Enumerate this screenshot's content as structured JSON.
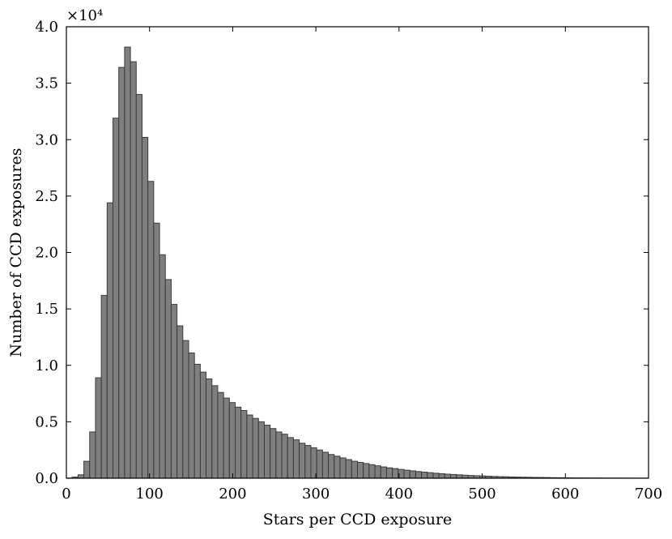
{
  "chart_data": {
    "type": "bar",
    "subtype": "histogram",
    "xlabel": "Stars per CCD exposure",
    "ylabel": "Number of CCD exposures",
    "y_multiplier_label": "×10⁴",
    "xlim": [
      0,
      700
    ],
    "ylim": [
      0,
      4.0
    ],
    "xticks": [
      0,
      100,
      200,
      300,
      400,
      500,
      600,
      700
    ],
    "yticks": [
      0.0,
      0.5,
      1.0,
      1.5,
      2.0,
      2.5,
      3.0,
      3.5,
      4.0
    ],
    "xtick_labels": [
      "0",
      "100",
      "200",
      "300",
      "400",
      "500",
      "600",
      "700"
    ],
    "ytick_labels": [
      "0.0",
      "0.5",
      "1.0",
      "1.5",
      "2.0",
      "2.5",
      "3.0",
      "3.5",
      "4.0"
    ],
    "grid": false,
    "bin_width": 7,
    "bin_start": 0,
    "values": [
      0.002,
      0.01,
      0.03,
      0.15,
      0.41,
      0.89,
      1.62,
      2.44,
      3.19,
      3.64,
      3.82,
      3.69,
      3.4,
      3.02,
      2.63,
      2.26,
      1.98,
      1.76,
      1.54,
      1.35,
      1.22,
      1.11,
      1.01,
      0.94,
      0.88,
      0.82,
      0.76,
      0.71,
      0.67,
      0.63,
      0.6,
      0.56,
      0.53,
      0.5,
      0.47,
      0.44,
      0.41,
      0.39,
      0.36,
      0.34,
      0.31,
      0.29,
      0.27,
      0.25,
      0.23,
      0.21,
      0.195,
      0.18,
      0.165,
      0.15,
      0.14,
      0.13,
      0.12,
      0.11,
      0.1,
      0.092,
      0.085,
      0.078,
      0.071,
      0.065,
      0.059,
      0.054,
      0.049,
      0.044,
      0.04,
      0.036,
      0.033,
      0.03,
      0.027,
      0.024,
      0.022,
      0.02,
      0.018,
      0.016,
      0.014,
      0.013,
      0.011,
      0.01,
      0.009,
      0.008,
      0.007,
      0.0065,
      0.006,
      0.005,
      0.0045,
      0.004,
      0.0035,
      0.003,
      0.0028,
      0.0025,
      0.0022,
      0.002,
      0.0018,
      0.0016,
      0.0015,
      0.0013,
      0.0012,
      0.0011,
      0.001,
      0.001
    ],
    "bar_color": "#7f7f7f",
    "edge_color": "#3a3a3a"
  }
}
